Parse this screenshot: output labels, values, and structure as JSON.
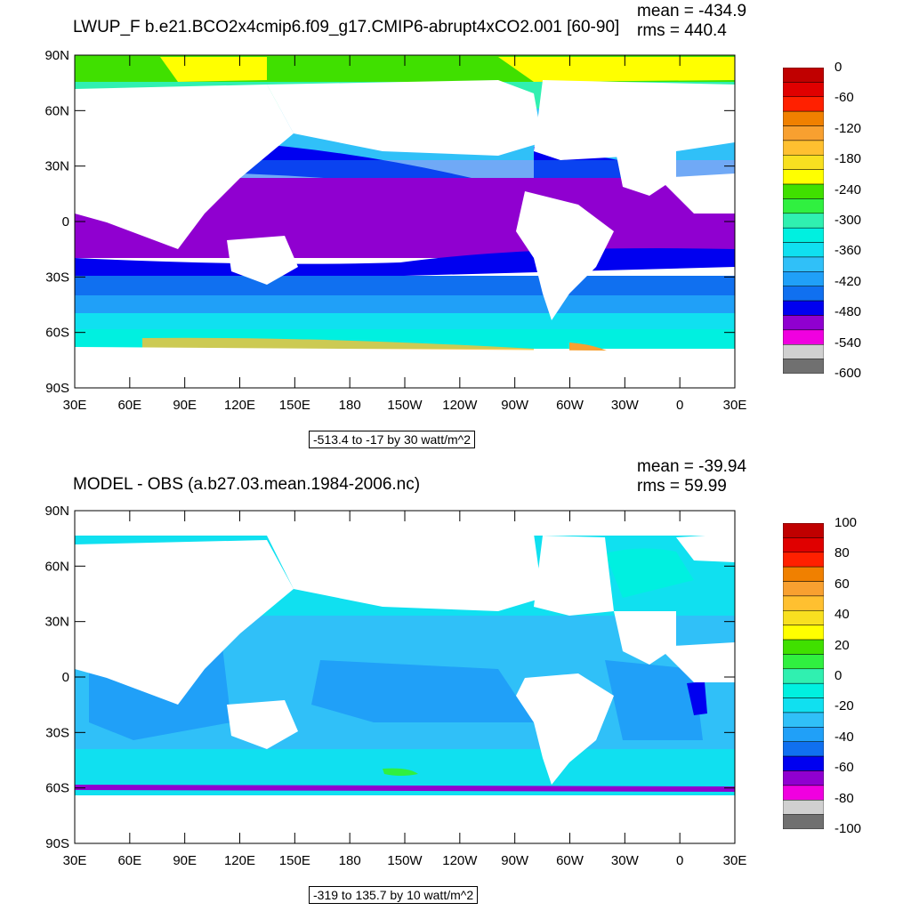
{
  "top": {
    "title": "LWUP_F b.e21.BCO2x4cmip6.f09_g17.CMIP6-abrupt4xCO2.001 [60-90]",
    "mean": "mean = -434.9",
    "rms": "rms = 440.4",
    "info": "-513.4 to -17 by 30 watt/m^2",
    "colorbar": {
      "labels": [
        "0",
        "-60",
        "-120",
        "-180",
        "-240",
        "-300",
        "-360",
        "-420",
        "-480",
        "-540",
        "-600"
      ],
      "colors": [
        "#c00000",
        "#e00000",
        "#ff2000",
        "#f08000",
        "#f8a030",
        "#ffc030",
        "#f8e020",
        "#ffff00",
        "#40e000",
        "#30f040",
        "#30f0b0",
        "#00f0e0",
        "#10e0f0",
        "#30c0f8",
        "#20a0f8",
        "#1070f0",
        "#0000f0",
        "#9000d0",
        "#f000e0",
        "#d0d0d0",
        "#707070"
      ]
    }
  },
  "bottom": {
    "title": "MODEL - OBS (a.b27.03.mean.1984-2006.nc)",
    "mean": "mean = -39.94",
    "rms": "rms = 59.99",
    "info": "-319 to 135.7 by 10 watt/m^2",
    "colorbar": {
      "labels": [
        "100",
        "80",
        "60",
        "40",
        "20",
        "0",
        "-20",
        "-40",
        "-60",
        "-80",
        "-100"
      ],
      "colors": [
        "#c00000",
        "#e00000",
        "#ff2000",
        "#f08000",
        "#f8a030",
        "#ffc030",
        "#f8e020",
        "#ffff00",
        "#40e000",
        "#30f040",
        "#30f0b0",
        "#00f0e0",
        "#10e0f0",
        "#30c0f8",
        "#20a0f8",
        "#1070f0",
        "#0000f0",
        "#9000d0",
        "#f000e0",
        "#d0d0d0",
        "#707070"
      ]
    }
  },
  "axes": {
    "lat_labels": [
      "90N",
      "60N",
      "30N",
      "0",
      "30S",
      "60S",
      "90S"
    ],
    "lon_labels": [
      "30E",
      "60E",
      "90E",
      "120E",
      "150E",
      "180",
      "150W",
      "120W",
      "90W",
      "60W",
      "30W",
      "0",
      "30E"
    ]
  }
}
